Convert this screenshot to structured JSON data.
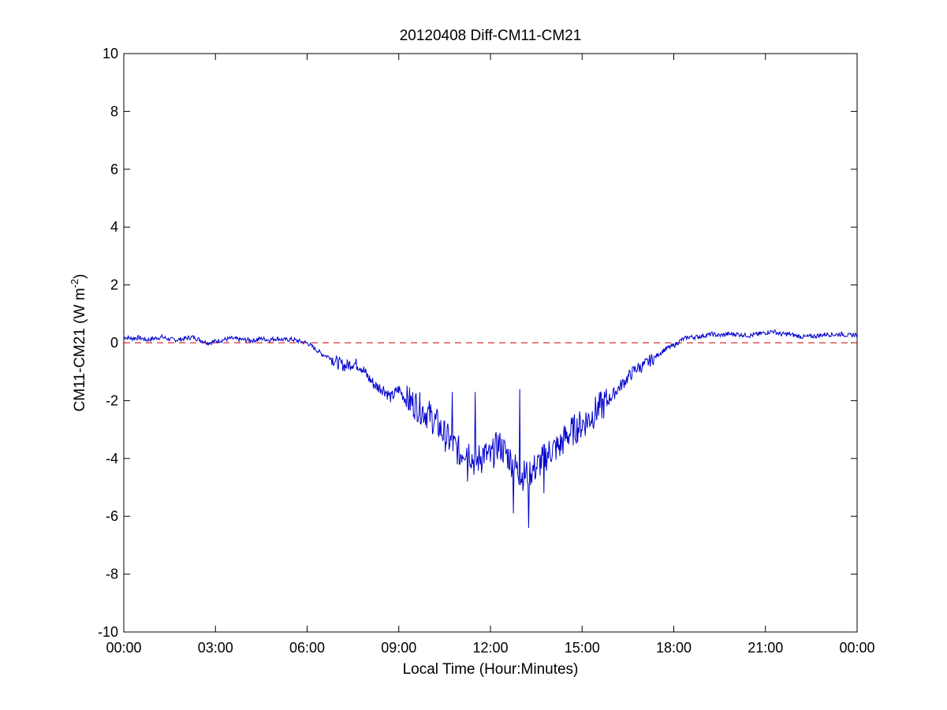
{
  "chart_data": {
    "type": "line",
    "title": "20120408 Diff-CM11-CM21",
    "xlabel": "Local Time (Hour:Minutes)",
    "ylabel_main": "CM11-CM21 (W m",
    "ylabel_sup": "-2",
    "ylabel_close": ")",
    "xlim": [
      0,
      24
    ],
    "ylim": [
      -10,
      10
    ],
    "x_ticks": [
      0,
      3,
      6,
      9,
      12,
      15,
      18,
      21,
      24
    ],
    "x_tick_labels": [
      "00:00",
      "03:00",
      "06:00",
      "09:00",
      "12:00",
      "15:00",
      "18:00",
      "21:00",
      "00:00"
    ],
    "y_ticks": [
      -10,
      -8,
      -6,
      -4,
      -2,
      0,
      2,
      4,
      6,
      8,
      10
    ],
    "y_tick_labels": [
      "-10",
      "-8",
      "-6",
      "-4",
      "-2",
      "0",
      "2",
      "4",
      "6",
      "8",
      "10"
    ],
    "grid": false,
    "series_color": "#0000cc",
    "reference_line": {
      "y": 0,
      "color": "#cc0000",
      "style": "dashed"
    },
    "series": [
      {
        "x": [
          0.0,
          0.25,
          0.5,
          0.75,
          1.0,
          1.25,
          1.5,
          1.75,
          2.0,
          2.25,
          2.5,
          2.75,
          3.0,
          3.25,
          3.5,
          3.75,
          4.0,
          4.25,
          4.5,
          4.75,
          5.0,
          5.25,
          5.5,
          5.75,
          6.0,
          6.25,
          6.5,
          6.75,
          7.0,
          7.25,
          7.5,
          7.75,
          8.0,
          8.25,
          8.5,
          8.75,
          9.0,
          9.25,
          9.5,
          9.75,
          10.0,
          10.25,
          10.5,
          10.75,
          11.0,
          11.25,
          11.5,
          11.75,
          12.0,
          12.25,
          12.5,
          12.75,
          13.0,
          13.25,
          13.5,
          13.75,
          14.0,
          14.25,
          14.5,
          14.75,
          15.0,
          15.25,
          15.5,
          15.75,
          16.0,
          16.25,
          16.5,
          16.75,
          17.0,
          17.25,
          17.5,
          17.75,
          18.0,
          18.25,
          18.5,
          18.75,
          19.0,
          19.25,
          19.5,
          19.75,
          20.0,
          20.25,
          20.5,
          20.75,
          21.0,
          21.25,
          21.5,
          21.75,
          22.0,
          22.25,
          22.5,
          22.75,
          23.0,
          23.25,
          23.5,
          23.75,
          24.0
        ],
        "y": [
          0.2,
          0.15,
          0.18,
          0.1,
          0.15,
          0.2,
          0.12,
          0.1,
          0.15,
          0.2,
          0.1,
          0.0,
          0.05,
          0.1,
          0.15,
          0.12,
          0.1,
          0.08,
          0.15,
          0.1,
          0.15,
          0.1,
          0.12,
          0.05,
          0.0,
          -0.2,
          -0.4,
          -0.5,
          -0.7,
          -0.8,
          -0.7,
          -0.8,
          -1.2,
          -1.5,
          -1.6,
          -1.9,
          -1.6,
          -2.0,
          -2.1,
          -2.3,
          -2.5,
          -2.8,
          -3.2,
          -3.5,
          -3.8,
          -3.6,
          -4.2,
          -3.8,
          -4.0,
          -3.5,
          -3.8,
          -4.2,
          -4.6,
          -4.5,
          -4.3,
          -4.0,
          -3.7,
          -3.6,
          -3.2,
          -3.0,
          -2.8,
          -2.6,
          -2.3,
          -2.1,
          -1.8,
          -1.5,
          -1.2,
          -0.9,
          -0.8,
          -0.6,
          -0.4,
          -0.2,
          -0.1,
          0.1,
          0.2,
          0.2,
          0.25,
          0.3,
          0.25,
          0.3,
          0.3,
          0.28,
          0.25,
          0.3,
          0.35,
          0.4,
          0.3,
          0.3,
          0.25,
          0.2,
          0.22,
          0.25,
          0.3,
          0.28,
          0.3,
          0.25,
          0.3
        ],
        "spikes": [
          {
            "x": 10.75,
            "y": -1.7
          },
          {
            "x": 11.0,
            "y": -4.2
          },
          {
            "x": 11.25,
            "y": -4.8
          },
          {
            "x": 11.5,
            "y": -1.7
          },
          {
            "x": 11.7,
            "y": -4.5
          },
          {
            "x": 12.75,
            "y": -5.9
          },
          {
            "x": 12.95,
            "y": -1.6
          },
          {
            "x": 13.25,
            "y": -6.4
          },
          {
            "x": 13.75,
            "y": -5.2
          }
        ]
      }
    ]
  }
}
